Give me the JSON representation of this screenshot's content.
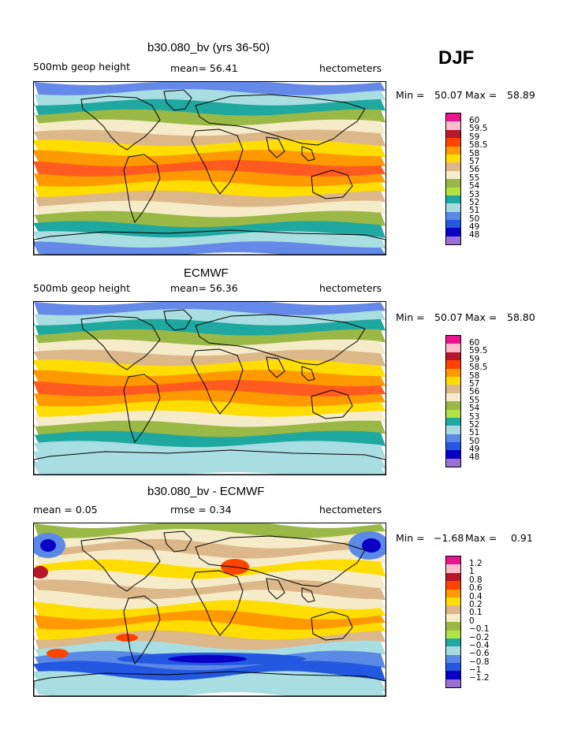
{
  "season": "DJF",
  "panels": [
    {
      "title": "b30.080_bv (yrs 36-50)",
      "left_label": "500mb geop height",
      "center_label": "mean=  56.41",
      "right_label": "hectometers",
      "min_label": "Min =",
      "min_value": "50.07",
      "max_label": "Max =",
      "max_value": "58.89",
      "colorbar_colors": [
        "#e8158c",
        "#ffbccc",
        "#b8162b",
        "#ff4400",
        "#ff9900",
        "#ffdd00",
        "#dcb78a",
        "#f5ebc8",
        "#9ab846",
        "#b2e343",
        "#1fa8a0",
        "#a7dbe0",
        "#5a8ae6",
        "#2458e0",
        "#0a00c5",
        "#9a70d4"
      ],
      "colorbar_labels": [
        "60",
        "59.5",
        "59",
        "58.5",
        "58",
        "57",
        "56",
        "55",
        "54",
        "53",
        "52",
        "51",
        "50",
        "49",
        "48"
      ],
      "band_colors": [
        "#6489e8",
        "#a8dde2",
        "#1fa8a0",
        "#9ab846",
        "#f5ebc8",
        "#dcb78a",
        "#ffdd00",
        "#ff9900",
        "#ff5a1f",
        "#ff9900",
        "#ffdd00",
        "#dcb78a",
        "#f5ebc8",
        "#9ab846",
        "#1fa8a0",
        "#a8dde2",
        "#6489e8"
      ]
    },
    {
      "title": "ECMWF",
      "left_label": "500mb geop height",
      "center_label": "mean=  56.36",
      "right_label": "hectometers",
      "min_label": "Min =",
      "min_value": "50.07",
      "max_label": "Max =",
      "max_value": "58.80",
      "colorbar_colors": [
        "#e8158c",
        "#ffbccc",
        "#b8162b",
        "#ff4400",
        "#ff9900",
        "#ffdd00",
        "#dcb78a",
        "#f5ebc8",
        "#9ab846",
        "#b2e343",
        "#1fa8a0",
        "#a7dbe0",
        "#5a8ae6",
        "#2458e0",
        "#0a00c5",
        "#9a70d4"
      ],
      "colorbar_labels": [
        "60",
        "59.5",
        "59",
        "58.5",
        "58",
        "57",
        "56",
        "55",
        "54",
        "53",
        "52",
        "51",
        "50",
        "49",
        "48"
      ],
      "band_colors": [
        "#6489e8",
        "#a8dde2",
        "#1fa8a0",
        "#9ab846",
        "#f5ebc8",
        "#dcb78a",
        "#ffdd00",
        "#ff9900",
        "#ff5a1f",
        "#ff9900",
        "#ffdd00",
        "#f5ebc8",
        "#9ab846",
        "#1fa8a0",
        "#a8dde2",
        "#a8dde2",
        "#a8dde2"
      ]
    },
    {
      "title": "b30.080_bv - ECMWF",
      "left_label": "mean =    0.05",
      "center_label": "rmse =    0.34",
      "right_label": "hectometers",
      "min_label": "Min =",
      "min_value": "−1.68",
      "max_label": "Max =",
      "max_value": "0.91",
      "colorbar_colors": [
        "#e8158c",
        "#ffbccc",
        "#b8162b",
        "#ff4400",
        "#ff9900",
        "#ffdd00",
        "#dcb78a",
        "#f5ebc8",
        "#9ab846",
        "#b2e343",
        "#1fa8a0",
        "#a7dbe0",
        "#5a8ae6",
        "#2458e0",
        "#0a00c5",
        "#9a70d4"
      ],
      "colorbar_labels": [
        "1.2",
        "1",
        "0.8",
        "0.6",
        "0.4",
        "0.2",
        "0.1",
        "0",
        "−0.1",
        "−0.2",
        "−0.4",
        "−0.6",
        "−0.8",
        "−1",
        "−1.2"
      ],
      "band_colors": [
        "#9ab846",
        "#f5ebc8",
        "#dcb78a",
        "#f5ebc8",
        "#ffdd00",
        "#f5ebc8",
        "#dcb78a",
        "#f5ebc8",
        "#ffdd00",
        "#ff9900",
        "#ffdd00",
        "#dcb78a",
        "#a8dde2",
        "#5a8ae6",
        "#2458e0",
        "#a8dde2",
        "#a8dde2"
      ]
    }
  ]
}
